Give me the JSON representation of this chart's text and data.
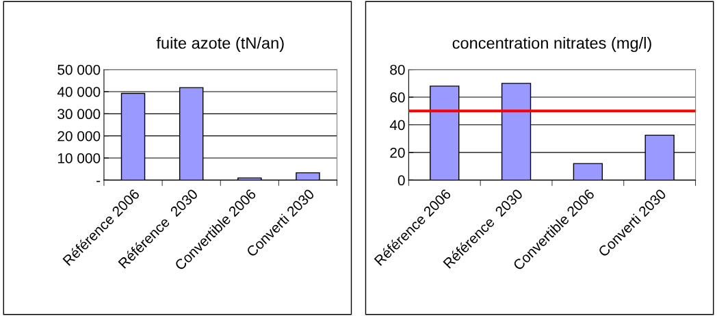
{
  "chart_data": [
    {
      "type": "bar",
      "title": "fuite azote (tN/an)",
      "categories": [
        "Référence 2006",
        "Référence  2030",
        "Convertible 2006",
        "Converti 2030"
      ],
      "values": [
        39200,
        41800,
        1000,
        3300
      ],
      "color": "#9999ff",
      "ylim": [
        0,
        50000
      ],
      "yticks": [
        {
          "value": 0,
          "label": "-"
        },
        {
          "value": 10000,
          "label": "10 000"
        },
        {
          "value": 20000,
          "label": "20 000"
        },
        {
          "value": 30000,
          "label": "30 000"
        },
        {
          "value": 40000,
          "label": "40 000"
        },
        {
          "value": 50000,
          "label": "50 000"
        }
      ],
      "grid": "y",
      "legend": false
    },
    {
      "type": "bar",
      "title": "concentration nitrates (mg/l)",
      "categories": [
        "Référence 2006",
        "Référence  2030",
        "Convertible 2006",
        "Converti 2030"
      ],
      "values": [
        68,
        70,
        12,
        32.5
      ],
      "color": "#9999ff",
      "ylim": [
        0,
        80
      ],
      "yticks": [
        0,
        20,
        40,
        60,
        80
      ],
      "grid": "y",
      "legend": false,
      "ref_lines": [
        {
          "axis": "y",
          "value": 50,
          "color": "#ff0000"
        }
      ]
    }
  ]
}
